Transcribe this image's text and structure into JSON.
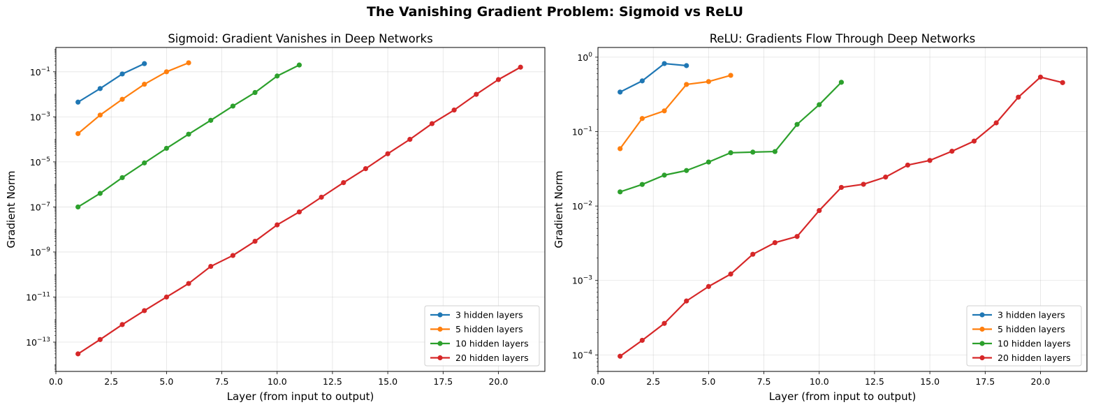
{
  "suptitle": "The Vanishing Gradient Problem: Sigmoid vs ReLU",
  "chart_data": [
    {
      "type": "line",
      "title": "Sigmoid: Gradient Vanishes in Deep Networks",
      "xlabel": "Layer (from input to output)",
      "ylabel": "Gradient Norm",
      "yscale": "log",
      "xlim": [
        0,
        22.1
      ],
      "ylim": [
        5e-15,
        1.2
      ],
      "xticks": [
        0,
        2.5,
        5,
        7.5,
        10,
        12.5,
        15,
        17.5,
        20
      ],
      "xtick_labels": [
        "0.0",
        "2.5",
        "5.0",
        "7.5",
        "10.0",
        "12.5",
        "15.0",
        "17.5",
        "20.0"
      ],
      "yticks": [
        -13,
        -11,
        -9,
        -7,
        -5,
        -3,
        -1
      ],
      "grid": true,
      "legend_position": "lower right",
      "series": [
        {
          "name": "3 hidden layers",
          "color": "#1f77b4",
          "x": [
            1,
            2,
            3,
            4
          ],
          "y": [
            0.0045,
            0.018,
            0.08,
            0.23
          ]
        },
        {
          "name": "5 hidden layers",
          "color": "#ff7f0e",
          "x": [
            1,
            2,
            3,
            4,
            5,
            6
          ],
          "y": [
            0.00018,
            0.0012,
            0.006,
            0.028,
            0.1,
            0.25
          ]
        },
        {
          "name": "10 hidden layers",
          "color": "#2ca02c",
          "x": [
            1,
            2,
            3,
            4,
            5,
            6,
            7,
            8,
            9,
            10,
            11
          ],
          "y": [
            1e-07,
            4e-07,
            2e-06,
            9e-06,
            4e-05,
            0.00017,
            0.0007,
            0.003,
            0.012,
            0.065,
            0.2
          ]
        },
        {
          "name": "20 hidden layers",
          "color": "#d62728",
          "x": [
            1,
            2,
            3,
            4,
            5,
            6,
            7,
            8,
            9,
            10,
            11,
            12,
            13,
            14,
            15,
            16,
            17,
            18,
            19,
            20,
            21
          ],
          "y": [
            3e-14,
            1.3e-13,
            6e-13,
            2.5e-12,
            1e-11,
            4e-11,
            2.3e-10,
            7e-10,
            3e-09,
            1.6e-08,
            6e-08,
            2.7e-07,
            1.2e-06,
            5e-06,
            2.3e-05,
            0.0001,
            0.0005,
            0.002,
            0.01,
            0.045,
            0.16
          ]
        }
      ]
    },
    {
      "type": "line",
      "title": "ReLU: Gradients Flow Through Deep Networks",
      "xlabel": "Layer (from input to output)",
      "ylabel": "Gradient Norm",
      "yscale": "log",
      "xlim": [
        0,
        22.1
      ],
      "ylim": [
        6e-05,
        1.35
      ],
      "xticks": [
        0,
        2.5,
        5,
        7.5,
        10,
        12.5,
        15,
        17.5,
        20
      ],
      "xtick_labels": [
        "0.0",
        "2.5",
        "5.0",
        "7.5",
        "10.0",
        "12.5",
        "15.0",
        "17.5",
        "20.0"
      ],
      "yticks": [
        -4,
        -3,
        -2,
        -1,
        0
      ],
      "grid": true,
      "legend_position": "lower right",
      "series": [
        {
          "name": "3 hidden layers",
          "color": "#1f77b4",
          "x": [
            1,
            2,
            3,
            4
          ],
          "y": [
            0.34,
            0.48,
            0.82,
            0.77
          ]
        },
        {
          "name": "5 hidden layers",
          "color": "#ff7f0e",
          "x": [
            1,
            2,
            3,
            4,
            5,
            6
          ],
          "y": [
            0.059,
            0.15,
            0.19,
            0.43,
            0.47,
            0.57
          ]
        },
        {
          "name": "10 hidden layers",
          "color": "#2ca02c",
          "x": [
            1,
            2,
            3,
            4,
            5,
            6,
            7,
            8,
            9,
            10,
            11
          ],
          "y": [
            0.0155,
            0.0195,
            0.026,
            0.03,
            0.039,
            0.052,
            0.053,
            0.054,
            0.125,
            0.23,
            0.46
          ]
        },
        {
          "name": "20 hidden layers",
          "color": "#d62728",
          "x": [
            1,
            2,
            3,
            4,
            5,
            6,
            7,
            8,
            9,
            10,
            11,
            12,
            13,
            14,
            15,
            16,
            17,
            18,
            19,
            20,
            21
          ],
          "y": [
            9.6e-05,
            0.000157,
            0.000265,
            0.00053,
            0.00083,
            0.00122,
            0.00225,
            0.00322,
            0.0039,
            0.0087,
            0.0178,
            0.0196,
            0.0245,
            0.0355,
            0.041,
            0.0545,
            0.0745,
            0.131,
            0.29,
            0.54,
            0.455
          ]
        }
      ]
    }
  ]
}
